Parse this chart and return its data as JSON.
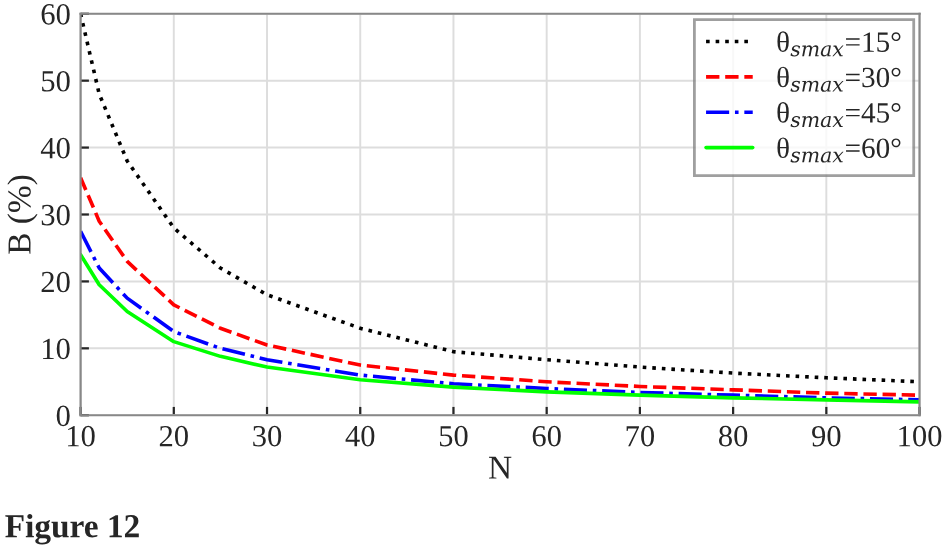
{
  "chart_data": {
    "type": "line",
    "xlabel": "N",
    "ylabel": "B (%)",
    "x": [
      10,
      12,
      15,
      20,
      25,
      30,
      40,
      50,
      60,
      70,
      80,
      90,
      100
    ],
    "series": [
      {
        "name": "θ$_{smax}$=15°",
        "color": "#000000",
        "line_style": "dotted",
        "values": [
          60,
          48,
          38,
          28,
          22,
          18,
          13,
          9.5,
          8.3,
          7.2,
          6.3,
          5.6,
          5.0
        ]
      },
      {
        "name": "θ$_{smax}$=30°",
        "color": "#ff0000",
        "line_style": "dashed",
        "values": [
          35.5,
          29,
          23,
          16.5,
          13,
          10.5,
          7.5,
          6,
          5,
          4.3,
          3.8,
          3.3,
          3.0
        ]
      },
      {
        "name": "θ$_{smax}$=45°",
        "color": "#0000ff",
        "line_style": "dashdot",
        "values": [
          27.5,
          22,
          17.5,
          12.5,
          10,
          8.3,
          6,
          4.7,
          4,
          3.4,
          3,
          2.6,
          2.3
        ]
      },
      {
        "name": "θ$_{smax}$=60°",
        "color": "#00ff00",
        "line_style": "solid",
        "values": [
          24,
          19.5,
          15.5,
          11,
          8.8,
          7.2,
          5.3,
          4.2,
          3.5,
          3.0,
          2.6,
          2.3,
          2.0
        ]
      }
    ],
    "xlim": [
      10,
      100
    ],
    "ylim": [
      0,
      60
    ],
    "xticks": [
      10,
      20,
      30,
      40,
      50,
      60,
      70,
      80,
      90,
      100
    ],
    "yticks": [
      0,
      10,
      20,
      30,
      40,
      50,
      60
    ],
    "grid": true,
    "legend": "top right",
    "annotations": [
      "Figure 12"
    ]
  }
}
